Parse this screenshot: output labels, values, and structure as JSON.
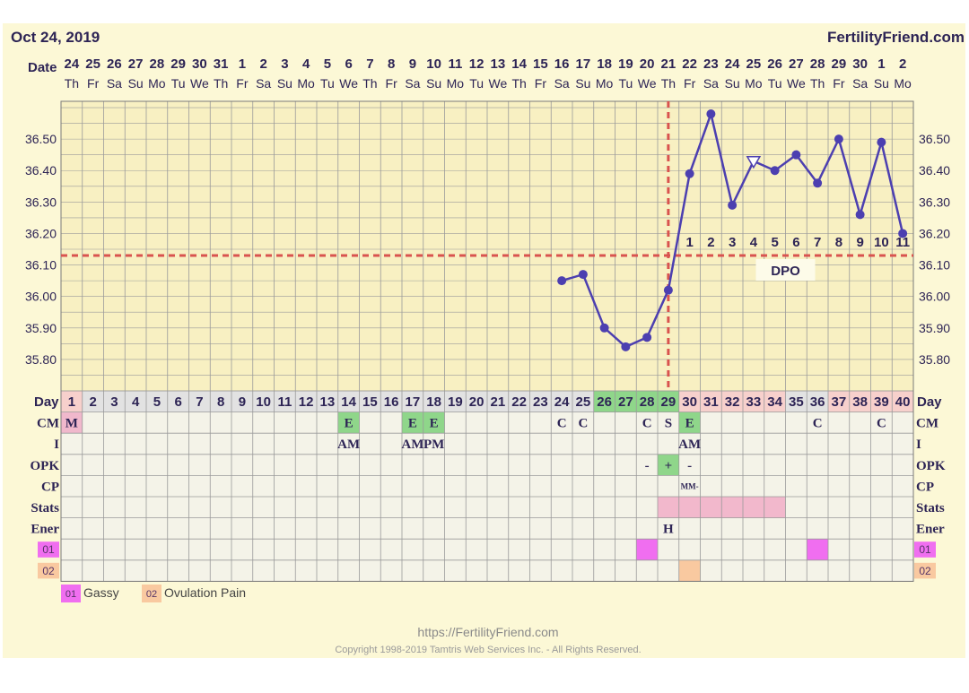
{
  "header": {
    "date": "Oct 24, 2019",
    "brand": "FertilityFriend.com"
  },
  "footer": {
    "url": "https://FertilityFriend.com",
    "copyright": "Copyright 1998-2019 Tamtris Web Services Inc. - All Rights Reserved."
  },
  "legend": [
    {
      "code": "01",
      "label": "Gassy",
      "color": "#f06ef0"
    },
    {
      "code": "02",
      "label": "Ovulation Pain",
      "color": "#f9c9a0"
    }
  ],
  "colors": {
    "page_bg": "#fcf8d6",
    "temp_area_bg": "#f8f0c2",
    "grid_line": "#9a9a9a",
    "low_grid_bg": "#f4f3e8",
    "day_row_bg": "#e2e2e2",
    "green": "#8fd68a",
    "pink_day": "#f7d0cc",
    "stats_pink": "#f2b8cc",
    "line": "#4c3fb0",
    "coverline": "#d9534f",
    "text_dark": "#2d2455"
  },
  "chart_data": {
    "type": "line",
    "title": "",
    "ylabel": "",
    "xlabel": "",
    "ylim": [
      35.7,
      36.62
    ],
    "yticks": [
      "36.50",
      "36.40",
      "36.30",
      "36.20",
      "36.10",
      "36.00",
      "35.90",
      "35.80"
    ],
    "coverline": 36.13,
    "ovulation_day": 29,
    "dates": [
      "24",
      "25",
      "26",
      "27",
      "28",
      "29",
      "30",
      "31",
      "1",
      "2",
      "3",
      "4",
      "5",
      "6",
      "7",
      "8",
      "9",
      "10",
      "11",
      "12",
      "13",
      "14",
      "15",
      "16",
      "17",
      "18",
      "19",
      "20",
      "21",
      "22",
      "23",
      "24",
      "25",
      "26",
      "27",
      "28",
      "29",
      "30",
      "1",
      "2"
    ],
    "weekdays": [
      "Th",
      "Fr",
      "Sa",
      "Su",
      "Mo",
      "Tu",
      "We",
      "Th",
      "Fr",
      "Sa",
      "Su",
      "Mo",
      "Tu",
      "We",
      "Th",
      "Fr",
      "Sa",
      "Su",
      "Mo",
      "Tu",
      "We",
      "Th",
      "Fr",
      "Sa",
      "Su",
      "Mo",
      "Tu",
      "We",
      "Th",
      "Fr",
      "Sa",
      "Su",
      "Mo",
      "Tu",
      "We",
      "Th",
      "Fr",
      "Sa",
      "Su",
      "Mo"
    ],
    "days": [
      1,
      2,
      3,
      4,
      5,
      6,
      7,
      8,
      9,
      10,
      11,
      12,
      13,
      14,
      15,
      16,
      17,
      18,
      19,
      20,
      21,
      22,
      23,
      24,
      25,
      26,
      27,
      28,
      29,
      30,
      31,
      32,
      33,
      34,
      35,
      36,
      37,
      38,
      39,
      40
    ],
    "series": [
      {
        "values": [
          null,
          null,
          null,
          null,
          null,
          null,
          null,
          null,
          null,
          null,
          null,
          null,
          null,
          null,
          null,
          null,
          null,
          null,
          null,
          null,
          null,
          null,
          null,
          36.05,
          36.07,
          35.9,
          35.84,
          35.87,
          36.02,
          36.39,
          36.58,
          36.29,
          36.43,
          36.4,
          36.45,
          36.36,
          36.5,
          36.26,
          36.49,
          36.2
        ],
        "open_marker_days": [
          33
        ]
      }
    ],
    "dpo_labels": [
      "1",
      "2",
      "3",
      "4",
      "5",
      "6",
      "7",
      "8",
      "9",
      "10",
      "11"
    ],
    "dpo_start_day": 30,
    "dpo_caption": "DPO",
    "day_colors": {
      "green": [
        26,
        27,
        28,
        29
      ],
      "pink": [
        1,
        30,
        31,
        32,
        33,
        34,
        37,
        38,
        39,
        40
      ]
    },
    "rows": [
      {
        "label": "CM",
        "cells": [
          {
            "day": 1,
            "text": "M",
            "bg": "#f0b8cc"
          },
          {
            "day": 14,
            "text": "E",
            "bg": "#8fd68a"
          },
          {
            "day": 17,
            "text": "E",
            "bg": "#8fd68a"
          },
          {
            "day": 18,
            "text": "E",
            "bg": "#8fd68a"
          },
          {
            "day": 24,
            "text": "C"
          },
          {
            "day": 25,
            "text": "C"
          },
          {
            "day": 28,
            "text": "C"
          },
          {
            "day": 29,
            "text": "S"
          },
          {
            "day": 30,
            "text": "E",
            "bg": "#8fd68a"
          },
          {
            "day": 36,
            "text": "C"
          },
          {
            "day": 39,
            "text": "C"
          }
        ]
      },
      {
        "label": "I",
        "cells": [
          {
            "day": 14,
            "text": "AM"
          },
          {
            "day": 17,
            "text": "AM"
          },
          {
            "day": 18,
            "text": "PM"
          },
          {
            "day": 30,
            "text": "AM"
          }
        ]
      },
      {
        "label": "OPK",
        "cells": [
          {
            "day": 28,
            "text": "-"
          },
          {
            "day": 29,
            "text": "+",
            "bg": "#8fd68a"
          },
          {
            "day": 30,
            "text": "-"
          }
        ]
      },
      {
        "label": "CP",
        "cells": [
          {
            "day": 30,
            "text": "MM-",
            "small": true
          }
        ]
      },
      {
        "label": "Stats",
        "cells": [
          {
            "day": 29,
            "bg": "#f2b8cc"
          },
          {
            "day": 30,
            "bg": "#f2b8cc"
          },
          {
            "day": 31,
            "bg": "#f2b8cc"
          },
          {
            "day": 32,
            "bg": "#f2b8cc"
          },
          {
            "day": 33,
            "bg": "#f2b8cc"
          },
          {
            "day": 34,
            "bg": "#f2b8cc"
          }
        ]
      },
      {
        "label": "Ener",
        "cells": [
          {
            "day": 29,
            "text": "H"
          }
        ]
      },
      {
        "label": "01",
        "tag": true,
        "cells": [
          {
            "day": 28,
            "bg": "#f06ef0"
          },
          {
            "day": 36,
            "bg": "#f06ef0"
          }
        ]
      },
      {
        "label": "02",
        "tag": true,
        "cells": [
          {
            "day": 30,
            "bg": "#f9c9a0"
          }
        ]
      }
    ]
  }
}
